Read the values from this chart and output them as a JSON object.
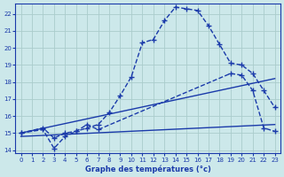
{
  "title": "Graphe des températures (°c)",
  "bg_color": "#cce8ea",
  "grid_color": "#aacccc",
  "line_color": "#1a3aaa",
  "xlim": [
    -0.5,
    23.5
  ],
  "ylim": [
    13.8,
    22.6
  ],
  "xticks": [
    0,
    1,
    2,
    3,
    4,
    5,
    6,
    7,
    8,
    9,
    10,
    11,
    12,
    13,
    14,
    15,
    16,
    17,
    18,
    19,
    20,
    21,
    22,
    23
  ],
  "yticks": [
    14,
    15,
    16,
    17,
    18,
    19,
    20,
    21,
    22
  ],
  "series": [
    {
      "x": [
        0,
        2,
        3,
        4,
        5,
        6,
        7,
        8,
        9,
        10,
        11,
        12,
        13,
        14,
        15,
        16,
        17,
        18,
        19,
        20,
        21,
        22,
        23
      ],
      "y": [
        15.0,
        15.3,
        14.7,
        15.0,
        15.1,
        15.3,
        15.5,
        16.2,
        17.2,
        18.3,
        20.3,
        20.5,
        21.6,
        22.4,
        22.3,
        22.2,
        21.3,
        20.2,
        19.1,
        19.0,
        18.5,
        17.5,
        16.5
      ],
      "marker": "+",
      "markersize": 4,
      "linewidth": 1.0
    },
    {
      "x": [
        0,
        2,
        3,
        4,
        5,
        6,
        7,
        19,
        20,
        21,
        22,
        23
      ],
      "y": [
        15.0,
        15.2,
        14.1,
        14.8,
        15.1,
        15.5,
        15.2,
        18.5,
        18.4,
        17.5,
        15.3,
        15.1
      ],
      "marker": "+",
      "markersize": 4,
      "linewidth": 1.0
    },
    {
      "x": [
        0,
        23
      ],
      "y": [
        15.0,
        18.2
      ],
      "marker": null,
      "markersize": 0,
      "linewidth": 1.0
    },
    {
      "x": [
        0,
        23
      ],
      "y": [
        14.8,
        15.5
      ],
      "marker": null,
      "markersize": 0,
      "linewidth": 1.0
    }
  ]
}
